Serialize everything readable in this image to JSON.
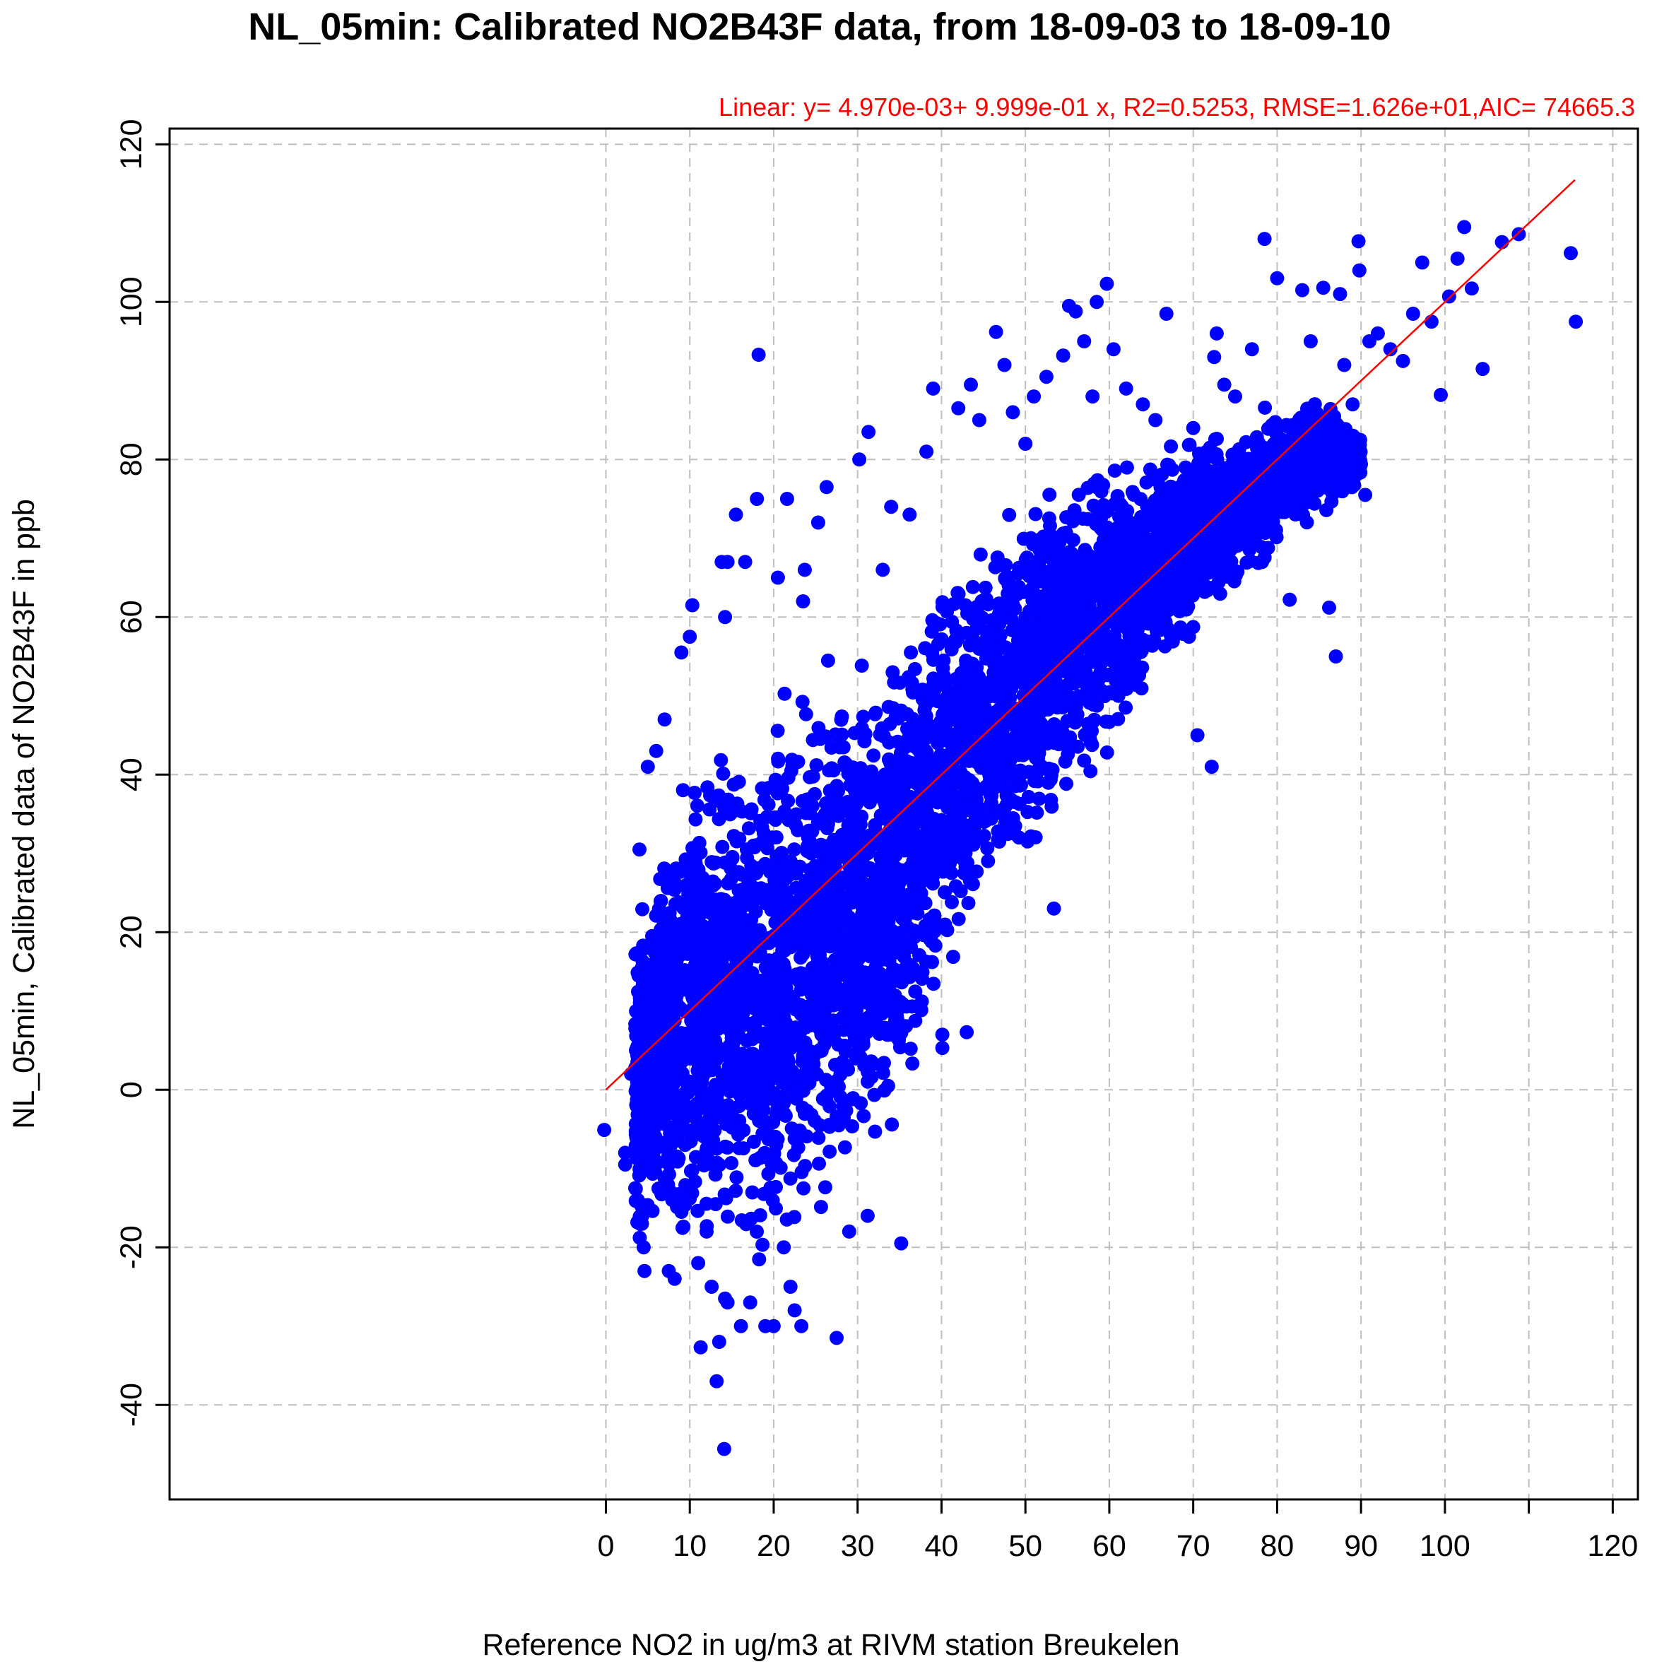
{
  "chart_data": {
    "type": "scatter",
    "title": "NL_05min: Calibrated NO2B43F data, from 18-09-03 to 18-09-10",
    "subtitle": "Linear: y= 4.970e-03+ 9.999e-01 x, R2=0.5253, RMSE=1.626e+01,AIC= 74665.3",
    "xlabel": "Reference NO2 in ug/m3 at RIVM station Breukelen",
    "ylabel": "NL_05min, Calibrated data of NO2B43F in ppb",
    "xlim": [
      -52,
      123
    ],
    "ylim": [
      -52,
      122
    ],
    "x_ticks": [
      0,
      10,
      20,
      30,
      40,
      50,
      60,
      70,
      80,
      90,
      100,
      120
    ],
    "x_tick_marks": [
      0,
      10,
      20,
      30,
      40,
      50,
      60,
      70,
      80,
      90,
      100,
      110,
      120
    ],
    "x_grid": [
      0,
      10,
      20,
      30,
      40,
      50,
      60,
      70,
      80,
      90,
      100,
      110,
      120
    ],
    "y_ticks": [
      -40,
      -20,
      0,
      20,
      40,
      60,
      80,
      100,
      120
    ],
    "grid": true,
    "point_color": "#0000ff",
    "fit_line_color": "#ff0000",
    "fit_line": {
      "intercept": 0.00497,
      "slope": 0.9999,
      "x_range": [
        0,
        115.5
      ]
    },
    "point_cloud_shape": {
      "x_range": [
        3.5,
        90
      ],
      "y_lower": [
        [
          3.5,
          -23
        ],
        [
          10,
          -25
        ],
        [
          15,
          -27
        ],
        [
          20,
          -28
        ],
        [
          25,
          -20
        ],
        [
          30,
          -15
        ],
        [
          35,
          -7
        ],
        [
          40,
          8
        ],
        [
          45,
          20
        ],
        [
          50,
          27
        ],
        [
          55,
          34
        ],
        [
          60,
          40
        ],
        [
          65,
          48
        ],
        [
          70,
          57
        ],
        [
          75,
          62
        ],
        [
          80,
          67
        ],
        [
          85,
          72
        ],
        [
          90,
          76
        ]
      ],
      "y_upper": [
        [
          3.5,
          25
        ],
        [
          6,
          34
        ],
        [
          10,
          45
        ],
        [
          15,
          49
        ],
        [
          20,
          55
        ],
        [
          25,
          55
        ],
        [
          30,
          58
        ],
        [
          35,
          62
        ],
        [
          40,
          70
        ],
        [
          45,
          74
        ],
        [
          50,
          78
        ],
        [
          55,
          80
        ],
        [
          60,
          82
        ],
        [
          65,
          83
        ],
        [
          70,
          84
        ],
        [
          75,
          85
        ],
        [
          80,
          88
        ],
        [
          85,
          88
        ],
        [
          90,
          84
        ]
      ]
    },
    "series": [
      {
        "points": [
          [
            -0.2,
            -5.1
          ],
          [
            2.3,
            -8
          ],
          [
            2.3,
            -9.5
          ],
          [
            3,
            2
          ],
          [
            3.5,
            -12.5
          ],
          [
            3.8,
            -14
          ],
          [
            4,
            30.5
          ],
          [
            4.3,
            -17
          ],
          [
            4.5,
            -20
          ],
          [
            4.6,
            -23
          ],
          [
            5,
            41
          ],
          [
            5.5,
            -10
          ],
          [
            6,
            43
          ],
          [
            7,
            47
          ],
          [
            7.5,
            -23
          ],
          [
            8.2,
            -24
          ],
          [
            9,
            55.5
          ],
          [
            10,
            57.5
          ],
          [
            10.3,
            61.5
          ],
          [
            11,
            -22
          ],
          [
            11.3,
            -32.7
          ],
          [
            12,
            -18
          ],
          [
            12.6,
            -25
          ],
          [
            13.2,
            -37
          ],
          [
            13.5,
            -32
          ],
          [
            14.1,
            -45.6
          ],
          [
            14.2,
            -26.5
          ],
          [
            14.5,
            -27
          ],
          [
            13.8,
            67
          ],
          [
            14.5,
            67
          ],
          [
            14.2,
            60
          ],
          [
            15.5,
            73
          ],
          [
            16.1,
            -30
          ],
          [
            16.6,
            67
          ],
          [
            17.2,
            -27
          ],
          [
            18,
            75
          ],
          [
            18.2,
            93.3
          ],
          [
            19,
            -30
          ],
          [
            20,
            -30
          ],
          [
            20.5,
            65
          ],
          [
            21.2,
            -20
          ],
          [
            21.6,
            75
          ],
          [
            22,
            -25
          ],
          [
            22.5,
            -28
          ],
          [
            23.3,
            -30
          ],
          [
            23.5,
            62
          ],
          [
            23.7,
            66
          ],
          [
            25.3,
            72
          ],
          [
            26.3,
            76.5
          ],
          [
            27.5,
            -31.5
          ],
          [
            29,
            -18
          ],
          [
            30.2,
            80
          ],
          [
            31.3,
            83.5
          ],
          [
            31.2,
            -16
          ],
          [
            33,
            66
          ],
          [
            34,
            74
          ],
          [
            35.2,
            -19.5
          ],
          [
            36.2,
            73
          ],
          [
            38.2,
            81
          ],
          [
            39,
            89
          ],
          [
            40.1,
            5.3
          ],
          [
            40.1,
            7
          ],
          [
            43,
            7.3
          ],
          [
            42,
            86.5
          ],
          [
            43.5,
            89.5
          ],
          [
            44.5,
            85
          ],
          [
            46.5,
            96.2
          ],
          [
            47.5,
            92
          ],
          [
            48.5,
            86
          ],
          [
            50,
            82
          ],
          [
            51,
            88
          ],
          [
            52.5,
            90.5
          ],
          [
            53.4,
            23
          ],
          [
            54.5,
            93.2
          ],
          [
            55.2,
            99.5
          ],
          [
            56,
            98.8
          ],
          [
            57,
            95
          ],
          [
            58,
            88
          ],
          [
            58.5,
            100
          ],
          [
            59.7,
            102.3
          ],
          [
            60.5,
            94
          ],
          [
            62,
            89
          ],
          [
            64,
            87
          ],
          [
            65.5,
            85
          ],
          [
            66.8,
            98.5
          ],
          [
            69.5,
            57.5
          ],
          [
            70,
            84
          ],
          [
            70.5,
            45
          ],
          [
            72.2,
            41
          ],
          [
            72.5,
            93
          ],
          [
            72.8,
            96
          ],
          [
            73.7,
            89.5
          ],
          [
            75,
            88
          ],
          [
            77,
            94
          ],
          [
            78.5,
            108
          ],
          [
            80,
            103
          ],
          [
            81.5,
            62.2
          ],
          [
            83,
            101.5
          ],
          [
            84,
            95
          ],
          [
            85.5,
            101.8
          ],
          [
            86.2,
            61.2
          ],
          [
            87,
            55
          ],
          [
            87.5,
            101
          ],
          [
            88,
            92
          ],
          [
            89,
            87
          ],
          [
            89.7,
            107.7
          ],
          [
            89.8,
            104
          ],
          [
            90.5,
            75.5
          ],
          [
            91,
            95
          ],
          [
            92,
            96
          ],
          [
            93.5,
            94
          ],
          [
            95,
            92.5
          ],
          [
            96.2,
            98.5
          ],
          [
            97.3,
            105
          ],
          [
            98.4,
            97.5
          ],
          [
            99.5,
            88.2
          ],
          [
            100.5,
            100.7
          ],
          [
            101.5,
            105.5
          ],
          [
            102.3,
            109.5
          ],
          [
            103.2,
            101.7
          ],
          [
            104.5,
            91.5
          ],
          [
            106.8,
            107.6
          ],
          [
            108.8,
            108.6
          ],
          [
            115,
            106.2
          ],
          [
            115.6,
            97.5
          ]
        ]
      }
    ]
  }
}
